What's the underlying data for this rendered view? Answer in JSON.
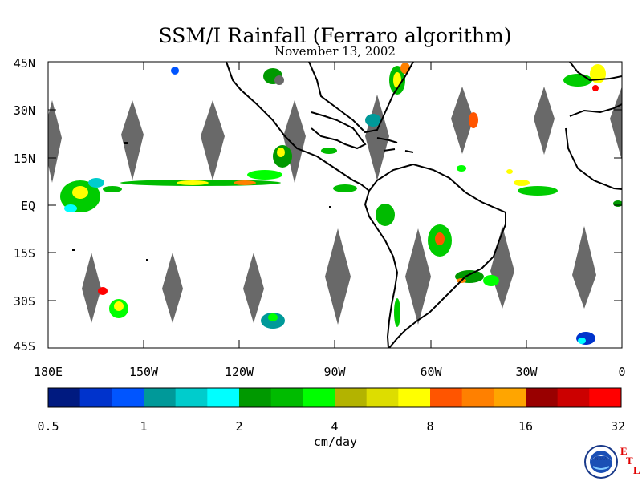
{
  "title": "SSM/I Rainfall (Ferraro algorithm)",
  "date": "November 13, 2002",
  "lat_labels": [
    "45N",
    "30N",
    "15N",
    "EQ",
    "15S",
    "30S",
    "45S"
  ],
  "lon_labels": [
    "180E",
    "150W",
    "120W",
    "90W",
    "60W",
    "30W",
    "0"
  ],
  "colorbar": {
    "colors": [
      "#001a80",
      "#0033cc",
      "#0055ff",
      "#009999",
      "#00cccc",
      "#00ffff",
      "#009900",
      "#00bb00",
      "#00ff00",
      "#b3b300",
      "#dddd00",
      "#ffff00",
      "#ff5500",
      "#ff8000",
      "#ffa500",
      "#990000",
      "#cc0000",
      "#ff0000"
    ],
    "labels": [
      "0.5",
      "1",
      "2",
      "4",
      "8",
      "16",
      "32"
    ],
    "units": "cm/day"
  },
  "logo": {
    "letters": [
      "E",
      "T",
      "L"
    ],
    "emblem": "NOAA"
  },
  "no_data_color": "#696969"
}
